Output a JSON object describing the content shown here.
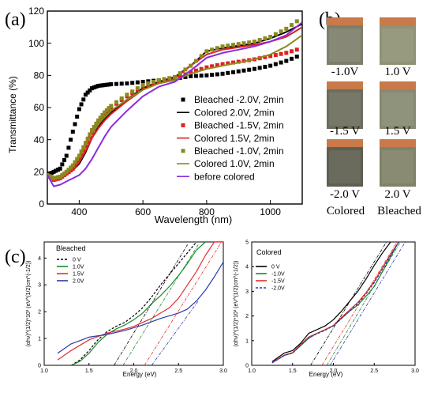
{
  "panel_labels": {
    "a": "(a)",
    "b": "(b)",
    "c": "(c)"
  },
  "photos": [
    {
      "label": "-1.0V",
      "color": "#7d7e6a"
    },
    {
      "label": "1.0 V",
      "color": "#8f9274"
    },
    {
      "label": "-1.5 V",
      "color": "#6c6d5c"
    },
    {
      "label": "1.5 V",
      "color": "#878a70"
    },
    {
      "label": "-2.0 V",
      "color": "#5e5f50"
    },
    {
      "label": "2.0 V",
      "color": "#7f8268"
    }
  ],
  "photo_footer": {
    "left": "Colored",
    "right": "Bleached"
  },
  "photo_tab_color": "#c87a4a",
  "chart_data": [
    {
      "type": "line",
      "xlabel": "Wavelength (nm)",
      "ylabel": "Transmittance (%)",
      "xlim": [
        300,
        1100
      ],
      "ylim": [
        0,
        120
      ],
      "xticks": [
        400,
        600,
        800,
        1000
      ],
      "yticks": [
        0,
        20,
        40,
        60,
        80,
        100,
        120
      ],
      "legend_placement": "bottom-right",
      "series": [
        {
          "name": "Bleached -2.0V, 2min",
          "style": "dots",
          "color": "#000000",
          "x": [
            300,
            320,
            340,
            360,
            380,
            400,
            420,
            440,
            460,
            480,
            500,
            550,
            600,
            650,
            700,
            750,
            800,
            850,
            900,
            950,
            1000,
            1050,
            1100
          ],
          "y": [
            18,
            20,
            22,
            30,
            45,
            59,
            68,
            72,
            73.5,
            74,
            74.5,
            75,
            76,
            77,
            78,
            79.5,
            80,
            81,
            82.5,
            84,
            86,
            89,
            93
          ]
        },
        {
          "name": "Colored 2.0V, 2min",
          "style": "line",
          "color": "#000000",
          "x": [
            300,
            320,
            340,
            360,
            380,
            400,
            420,
            440,
            460,
            480,
            500,
            550,
            600,
            650,
            700,
            750,
            800,
            850,
            900,
            950,
            1000,
            1050,
            1100
          ],
          "y": [
            18,
            15,
            16,
            18,
            21,
            25,
            32,
            41,
            48,
            53,
            57,
            65,
            72,
            76,
            79,
            86,
            95,
            97,
            98.5,
            100,
            103,
            107,
            112
          ]
        },
        {
          "name": "Bleached -1.5V, 2min",
          "style": "dots",
          "color": "#e02020",
          "x": [
            300,
            320,
            340,
            360,
            380,
            400,
            420,
            440,
            460,
            480,
            500,
            550,
            600,
            650,
            700,
            750,
            800,
            850,
            900,
            950,
            1000,
            1050,
            1100
          ],
          "y": [
            18,
            15,
            16,
            19,
            22,
            28,
            36,
            44,
            51,
            56,
            60,
            67,
            73,
            76,
            78,
            82,
            85,
            87,
            88.5,
            90,
            92,
            94,
            97
          ]
        },
        {
          "name": "Colored 1.5V, 2min",
          "style": "line",
          "color": "#e02020",
          "x": [
            300,
            320,
            340,
            360,
            380,
            400,
            420,
            440,
            460,
            480,
            500,
            550,
            600,
            650,
            700,
            750,
            800,
            850,
            900,
            950,
            1000,
            1050,
            1100
          ],
          "y": [
            18,
            15,
            16,
            18,
            21,
            26,
            33,
            41,
            47,
            52,
            56,
            64,
            71,
            75,
            78,
            86,
            93,
            96,
            97.5,
            99,
            101,
            104,
            110
          ]
        },
        {
          "name": "Bleached -1.0V, 2min",
          "style": "dots",
          "color": "#8a8a1e",
          "x": [
            300,
            320,
            340,
            360,
            380,
            400,
            420,
            440,
            460,
            480,
            500,
            550,
            600,
            650,
            700,
            750,
            800,
            850,
            900,
            950,
            1000,
            1050,
            1100
          ],
          "y": [
            18,
            16,
            17,
            20,
            24,
            30,
            38,
            46,
            52,
            57,
            61,
            68,
            74,
            77,
            79,
            86,
            95,
            98,
            99.5,
            101,
            104,
            109,
            116
          ]
        },
        {
          "name": "Colored 1.0V, 2min",
          "style": "line",
          "color": "#8a8a1e",
          "x": [
            300,
            320,
            340,
            360,
            380,
            400,
            420,
            440,
            460,
            480,
            500,
            550,
            600,
            650,
            700,
            750,
            800,
            850,
            900,
            950,
            1000,
            1050,
            1100
          ],
          "y": [
            18,
            15,
            17,
            20,
            24,
            29,
            37,
            44,
            50,
            54,
            58,
            65,
            71,
            75,
            77,
            81,
            84,
            86,
            88,
            90,
            93,
            98,
            105
          ]
        },
        {
          "name": "before colored",
          "style": "line",
          "color": "#8a2be2",
          "x": [
            300,
            320,
            340,
            360,
            380,
            400,
            420,
            440,
            460,
            480,
            500,
            550,
            600,
            650,
            700,
            750,
            800,
            850,
            900,
            950,
            1000,
            1050,
            1100
          ],
          "y": [
            18,
            11,
            12,
            14,
            16,
            18,
            22,
            28,
            35,
            42,
            48,
            58,
            67,
            73,
            76,
            83,
            91,
            94,
            96,
            98,
            101,
            105,
            113
          ]
        }
      ]
    },
    {
      "type": "line",
      "title": "Bleached",
      "xlabel": "Energy (eV)",
      "ylabel": "(αhν)^(1/2)*10³ (eV^(1/2)cm^(-1/2))",
      "xlim": [
        1.0,
        3.0
      ],
      "ylim": [
        0,
        4.6
      ],
      "xticks": [
        1.0,
        1.5,
        2.0,
        2.5,
        3.0
      ],
      "yticks": [
        0,
        1,
        2,
        3,
        4
      ],
      "legend_placement": "top-left",
      "series": [
        {
          "name": "0 V",
          "style": "dash",
          "color": "#000000",
          "x": [
            1.3,
            1.4,
            1.5,
            1.6,
            1.7,
            1.8,
            1.9,
            2.0,
            2.1,
            2.2,
            2.3,
            2.4,
            2.5,
            2.6,
            2.7
          ],
          "y": [
            0.0,
            0.2,
            0.55,
            0.95,
            1.25,
            1.45,
            1.6,
            1.85,
            2.15,
            2.55,
            3.0,
            3.4,
            3.8,
            4.2,
            4.6
          ]
        },
        {
          "name": "1.0V",
          "style": "line",
          "color": "#1a8a2a",
          "x": [
            1.3,
            1.4,
            1.5,
            1.6,
            1.7,
            1.8,
            1.9,
            2.0,
            2.1,
            2.2,
            2.3,
            2.4,
            2.5,
            2.6,
            2.7,
            2.8
          ],
          "y": [
            0.0,
            0.15,
            0.45,
            0.85,
            1.15,
            1.35,
            1.5,
            1.7,
            1.95,
            2.3,
            2.6,
            2.95,
            3.35,
            3.8,
            4.3,
            4.6
          ]
        },
        {
          "name": "1.5V",
          "style": "line",
          "color": "#e03030",
          "x": [
            1.15,
            1.3,
            1.5,
            1.7,
            1.9,
            2.0,
            2.1,
            2.2,
            2.3,
            2.4,
            2.5,
            2.6,
            2.7,
            2.8,
            2.9,
            3.0
          ],
          "y": [
            0.2,
            0.55,
            0.95,
            1.2,
            1.35,
            1.45,
            1.6,
            1.75,
            1.95,
            2.15,
            2.5,
            3.0,
            3.5,
            4.1,
            4.6,
            4.6
          ]
        },
        {
          "name": "2.0V",
          "style": "line",
          "color": "#2a3aa8",
          "x": [
            1.15,
            1.3,
            1.5,
            1.7,
            1.9,
            2.1,
            2.3,
            2.5,
            2.6,
            2.7,
            2.8,
            2.9,
            3.0
          ],
          "y": [
            0.45,
            0.8,
            1.05,
            1.15,
            1.3,
            1.5,
            1.75,
            1.95,
            2.1,
            2.4,
            2.8,
            3.3,
            3.85
          ]
        }
      ]
    },
    {
      "type": "line",
      "title": "Colored",
      "xlabel": "Energy (eV)",
      "ylabel": "(αhν)^(1/2)*10³ (eV^(1/2)cm^(-1/2))",
      "xlim": [
        1.0,
        3.0
      ],
      "ylim": [
        0,
        5
      ],
      "xticks": [
        1.0,
        1.5,
        2.0,
        2.5,
        3.0
      ],
      "yticks": [
        0,
        1,
        2,
        3,
        4,
        5
      ],
      "legend_placement": "top-left",
      "series": [
        {
          "name": "0 V",
          "style": "line",
          "color": "#000000",
          "x": [
            1.25,
            1.4,
            1.5,
            1.6,
            1.7,
            1.8,
            1.9,
            2.0,
            2.1,
            2.2,
            2.3,
            2.4,
            2.5,
            2.6,
            2.7
          ],
          "y": [
            0.15,
            0.5,
            0.6,
            0.9,
            1.3,
            1.45,
            1.6,
            1.85,
            2.2,
            2.6,
            3.0,
            3.5,
            4.05,
            4.55,
            5.0
          ]
        },
        {
          "name": "-1.0V",
          "style": "line",
          "color": "#1a8a2a",
          "x": [
            1.25,
            1.4,
            1.5,
            1.6,
            1.7,
            1.8,
            1.9,
            2.0,
            2.1,
            2.2,
            2.3,
            2.4,
            2.5,
            2.6,
            2.7,
            2.8
          ],
          "y": [
            0.1,
            0.4,
            0.5,
            0.8,
            1.1,
            1.3,
            1.45,
            1.6,
            1.9,
            2.2,
            2.45,
            2.8,
            3.2,
            3.8,
            4.4,
            5.0
          ]
        },
        {
          "name": "-1.5V",
          "style": "line",
          "color": "#e03030",
          "x": [
            1.25,
            1.4,
            1.5,
            1.6,
            1.7,
            1.8,
            1.9,
            2.0,
            2.1,
            2.2,
            2.3,
            2.4,
            2.5,
            2.6,
            2.7,
            2.8
          ],
          "y": [
            0.12,
            0.42,
            0.52,
            0.85,
            1.15,
            1.3,
            1.45,
            1.62,
            1.95,
            2.25,
            2.55,
            2.95,
            3.4,
            3.95,
            4.5,
            5.0
          ]
        },
        {
          "name": "-2.0V",
          "style": "dash",
          "color": "#2a3aa8",
          "x": [
            1.25,
            1.4,
            1.5,
            1.6,
            1.7,
            1.8,
            1.9,
            2.0,
            2.1,
            2.2,
            2.3,
            2.4,
            2.5,
            2.6,
            2.7,
            2.8
          ],
          "y": [
            0.1,
            0.4,
            0.5,
            0.82,
            1.12,
            1.28,
            1.42,
            1.6,
            1.9,
            2.2,
            2.5,
            2.9,
            3.35,
            3.9,
            4.45,
            5.0
          ]
        }
      ]
    }
  ]
}
